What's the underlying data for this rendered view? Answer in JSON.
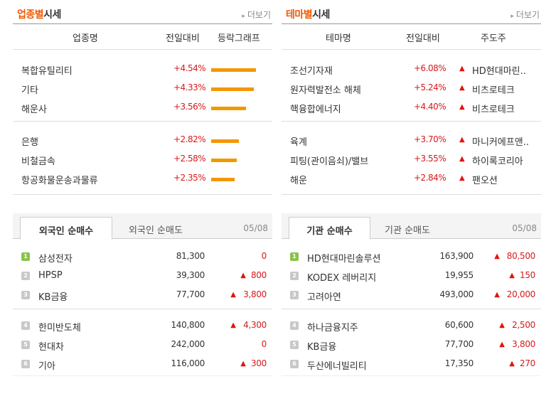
{
  "industry": {
    "title_accent": "업종별",
    "title_rest": "시세",
    "more": "더보기",
    "headers": [
      "업종명",
      "전일대비",
      "등락그래프"
    ],
    "rows": [
      {
        "name": "복합유틸리티",
        "change": "+4.54%",
        "value": 4.54
      },
      {
        "name": "기타",
        "change": "+4.33%",
        "value": 4.33
      },
      {
        "name": "해운사",
        "change": "+3.56%",
        "value": 3.56
      },
      {
        "name": "은행",
        "change": "+2.82%",
        "value": 2.82
      },
      {
        "name": "비철금속",
        "change": "+2.58%",
        "value": 2.58
      },
      {
        "name": "항공화물운송과물류",
        "change": "+2.35%",
        "value": 2.35
      }
    ]
  },
  "theme": {
    "title_accent": "테마별",
    "title_rest": "시세",
    "more": "더보기",
    "headers": [
      "테마명",
      "전일대비",
      "주도주"
    ],
    "rows": [
      {
        "name": "조선기자재",
        "change": "+6.08%",
        "leader": "HD현대마린.."
      },
      {
        "name": "원자력발전소 해체",
        "change": "+5.24%",
        "leader": "비츠로테크"
      },
      {
        "name": "핵융합에너지",
        "change": "+4.40%",
        "leader": "비츠로테크"
      },
      {
        "name": "육계",
        "change": "+3.70%",
        "leader": "마니커에프앤.."
      },
      {
        "name": "피팅(관이음쇠)/밸브",
        "change": "+3.55%",
        "leader": "하이록코리아"
      },
      {
        "name": "해운",
        "change": "+2.84%",
        "leader": "팬오션"
      }
    ]
  },
  "foreign": {
    "tab_active": "외국인 순매수",
    "tab_inactive": "외국인 순매도",
    "date": "05/08",
    "rows": [
      {
        "rank": "1",
        "name": "삼성전자",
        "price": "81,300",
        "change": "0",
        "up": false
      },
      {
        "rank": "2",
        "name": "HPSP",
        "price": "39,300",
        "change": "800",
        "up": true
      },
      {
        "rank": "3",
        "name": "KB금융",
        "price": "77,700",
        "change": "3,800",
        "up": true
      },
      {
        "rank": "4",
        "name": "한미반도체",
        "price": "140,800",
        "change": "4,300",
        "up": true
      },
      {
        "rank": "5",
        "name": "현대차",
        "price": "242,000",
        "change": "0",
        "up": false
      },
      {
        "rank": "6",
        "name": "기아",
        "price": "116,000",
        "change": "300",
        "up": true
      }
    ]
  },
  "institution": {
    "tab_active": "기관 순매수",
    "tab_inactive": "기관 순매도",
    "date": "05/08",
    "rows": [
      {
        "rank": "1",
        "name": "HD현대마린솔루션",
        "price": "163,900",
        "change": "80,500",
        "up": true
      },
      {
        "rank": "2",
        "name": "KODEX 레버리지",
        "price": "19,955",
        "change": "150",
        "up": true
      },
      {
        "rank": "3",
        "name": "고려아연",
        "price": "493,000",
        "change": "20,000",
        "up": true
      },
      {
        "rank": "4",
        "name": "하나금융지주",
        "price": "60,600",
        "change": "2,500",
        "up": true
      },
      {
        "rank": "5",
        "name": "KB금융",
        "price": "77,700",
        "change": "3,800",
        "up": true
      },
      {
        "rank": "6",
        "name": "두산에너빌리티",
        "price": "17,350",
        "change": "270",
        "up": true
      }
    ]
  },
  "colors": {
    "accent": "#f05a00",
    "bar": "#f39700",
    "up": "#d7191c",
    "rank_top": "#8bc34a",
    "rank_other": "#c8c8c8"
  },
  "icons": {
    "up": "triangle-up-icon",
    "more": "chevron-right-icon"
  }
}
